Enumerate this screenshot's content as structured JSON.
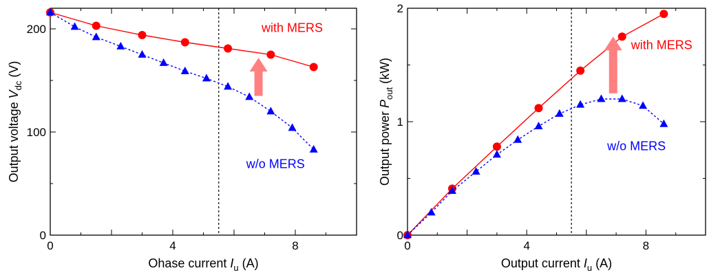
{
  "chart_data": [
    {
      "type": "line",
      "xlabel": {
        "prefix": "Ohase current",
        "var": "I",
        "sub": "u",
        "unit": "(A)"
      },
      "ylabel": {
        "prefix": "Output voltage",
        "var": "V",
        "sub": "dc",
        "unit": "(V)"
      },
      "xlim": [
        0,
        10
      ],
      "ylim": [
        0,
        220
      ],
      "xticks": [
        0,
        4,
        8
      ],
      "yticks": [
        0,
        100,
        200
      ],
      "marker_line_x": 5.5,
      "grid": false,
      "series": [
        {
          "name": "with MERS",
          "color": "#ff0000",
          "marker": "circle",
          "line": "solid",
          "x": [
            0,
            1.5,
            3.0,
            4.4,
            5.8,
            7.2,
            8.6
          ],
          "y": [
            216,
            203,
            194,
            187,
            181,
            175,
            163
          ]
        },
        {
          "name": "w/o MERS",
          "color": "#0000ff",
          "marker": "triangle",
          "line": "dotted",
          "x": [
            0,
            0.8,
            1.5,
            2.3,
            3.0,
            3.7,
            4.4,
            5.1,
            5.8,
            6.5,
            7.2,
            7.9,
            8.6
          ],
          "y": [
            216,
            202,
            192,
            183,
            175,
            167,
            159,
            152,
            144,
            134,
            120,
            104,
            83
          ]
        }
      ],
      "annotations": [
        {
          "text": "with MERS",
          "x": 6.9,
          "y": 197,
          "color": "#ff0000"
        },
        {
          "text": "w/o MERS",
          "x": 6.4,
          "y": 65,
          "color": "#0000ff"
        }
      ],
      "arrow": {
        "x": 6.8,
        "from_y": 135,
        "to_y": 172,
        "color": "#ff8080"
      }
    },
    {
      "type": "line",
      "xlabel": {
        "prefix": "Output current",
        "var": "I",
        "sub": "u",
        "unit": "(A)"
      },
      "ylabel": {
        "prefix": "Output power",
        "var": "P",
        "sub": "out",
        "unit": "(kW)"
      },
      "xlim": [
        0,
        10
      ],
      "ylim": [
        0,
        2
      ],
      "xticks": [
        0,
        4,
        8
      ],
      "yticks": [
        0,
        1,
        2
      ],
      "marker_line_x": 5.5,
      "grid": false,
      "series": [
        {
          "name": "with MERS",
          "color": "#ff0000",
          "marker": "circle",
          "line": "solid",
          "x": [
            0,
            1.5,
            3.0,
            4.4,
            5.8,
            7.2,
            8.6
          ],
          "y": [
            0.0,
            0.41,
            0.78,
            1.12,
            1.45,
            1.75,
            1.95
          ]
        },
        {
          "name": "w/o MERS",
          "color": "#0000ff",
          "marker": "triangle",
          "line": "dotted",
          "x": [
            0,
            0.8,
            1.5,
            2.3,
            3.0,
            3.7,
            4.4,
            5.1,
            5.8,
            6.5,
            7.2,
            7.9,
            8.6
          ],
          "y": [
            0.0,
            0.2,
            0.39,
            0.56,
            0.71,
            0.84,
            0.96,
            1.07,
            1.15,
            1.2,
            1.2,
            1.14,
            0.98
          ]
        }
      ],
      "annotations": [
        {
          "text": "with MERS",
          "x": 7.5,
          "y": 1.64,
          "color": "#ff0000"
        },
        {
          "text": "w/o MERS",
          "x": 6.7,
          "y": 0.75,
          "color": "#0000ff"
        }
      ],
      "arrow": {
        "x": 6.9,
        "from_y": 1.25,
        "to_y": 1.75,
        "color": "#ff8080"
      }
    }
  ]
}
